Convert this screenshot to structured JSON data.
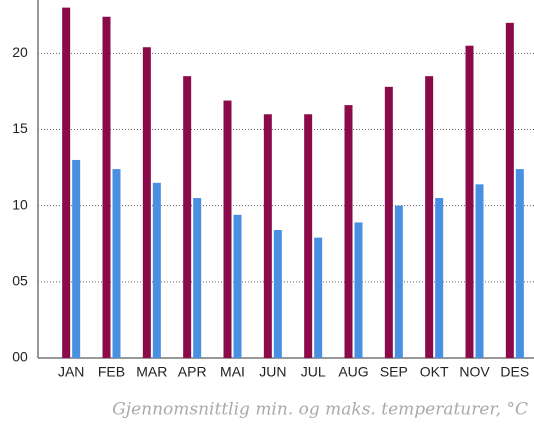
{
  "chart_data": {
    "type": "bar",
    "caption": "Gjennomsnittlig min. og maks. temperaturer, °C",
    "categories": [
      "JAN",
      "FEB",
      "MAR",
      "APR",
      "MAI",
      "JUN",
      "JUL",
      "AUG",
      "SEP",
      "OKT",
      "NOV",
      "DES"
    ],
    "series": [
      {
        "color": "#8a0a4a",
        "values": [
          23.0,
          22.4,
          20.4,
          18.5,
          16.9,
          16.0,
          16.0,
          16.6,
          17.8,
          18.5,
          20.5,
          22.0
        ]
      },
      {
        "color": "#4a90e2",
        "values": [
          13.0,
          12.4,
          11.5,
          10.5,
          9.4,
          8.4,
          7.9,
          8.9,
          10.0,
          10.5,
          11.4,
          12.4
        ]
      }
    ],
    "ylim": [
      0,
      23.5
    ],
    "yticks": [
      {
        "value": 0,
        "label": "00"
      },
      {
        "value": 5,
        "label": "05"
      },
      10,
      15,
      20
    ],
    "grid": true
  }
}
